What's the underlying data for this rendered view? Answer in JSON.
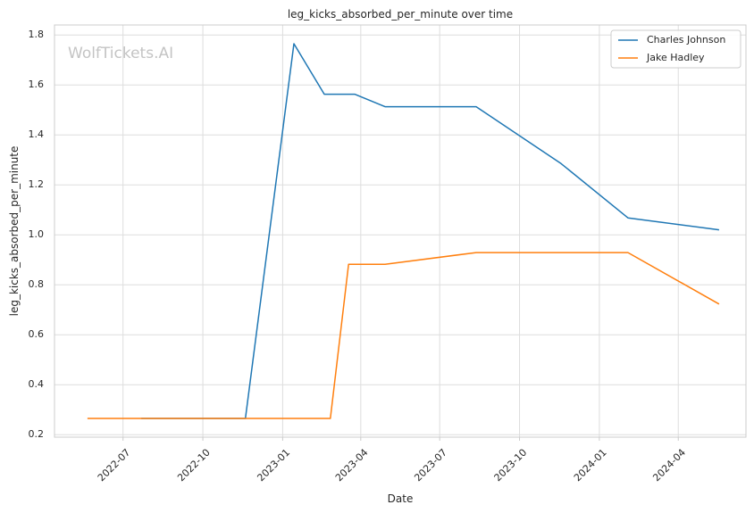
{
  "chart_data": {
    "type": "line",
    "title": "leg_kicks_absorbed_per_minute over time",
    "xlabel": "Date",
    "ylabel": "leg_kicks_absorbed_per_minute",
    "watermark": "WolfTickets.AI",
    "xlim": [
      "2022-04-13",
      "2024-06-18"
    ],
    "ylim": [
      0.19,
      1.84
    ],
    "x_ticks": [
      "2022-07",
      "2022-10",
      "2023-01",
      "2023-04",
      "2023-07",
      "2023-10",
      "2024-01",
      "2024-04"
    ],
    "y_ticks": [
      0.2,
      0.4,
      0.6,
      0.8,
      1.0,
      1.2,
      1.4,
      1.6,
      1.8
    ],
    "grid": true,
    "legend": "top-right",
    "series": [
      {
        "name": "Charles Johnson",
        "color": "#1f77b4",
        "points": [
          {
            "x": "2022-07-22",
            "y": 0.265
          },
          {
            "x": "2022-11-19",
            "y": 0.265
          },
          {
            "x": "2023-01-14",
            "y": 1.765
          },
          {
            "x": "2023-02-18",
            "y": 1.563
          },
          {
            "x": "2023-03-25",
            "y": 1.563
          },
          {
            "x": "2023-04-29",
            "y": 1.513
          },
          {
            "x": "2023-08-12",
            "y": 1.513
          },
          {
            "x": "2023-11-18",
            "y": 1.285
          },
          {
            "x": "2024-02-03",
            "y": 1.068
          },
          {
            "x": "2024-05-18",
            "y": 1.02
          }
        ]
      },
      {
        "name": "Jake Hadley",
        "color": "#ff7f0e",
        "points": [
          {
            "x": "2022-05-21",
            "y": 0.265
          },
          {
            "x": "2023-02-25",
            "y": 0.265
          },
          {
            "x": "2023-03-18",
            "y": 0.882
          },
          {
            "x": "2023-04-29",
            "y": 0.882
          },
          {
            "x": "2023-08-12",
            "y": 0.929
          },
          {
            "x": "2024-02-03",
            "y": 0.929
          },
          {
            "x": "2024-05-18",
            "y": 0.723
          }
        ]
      }
    ]
  }
}
